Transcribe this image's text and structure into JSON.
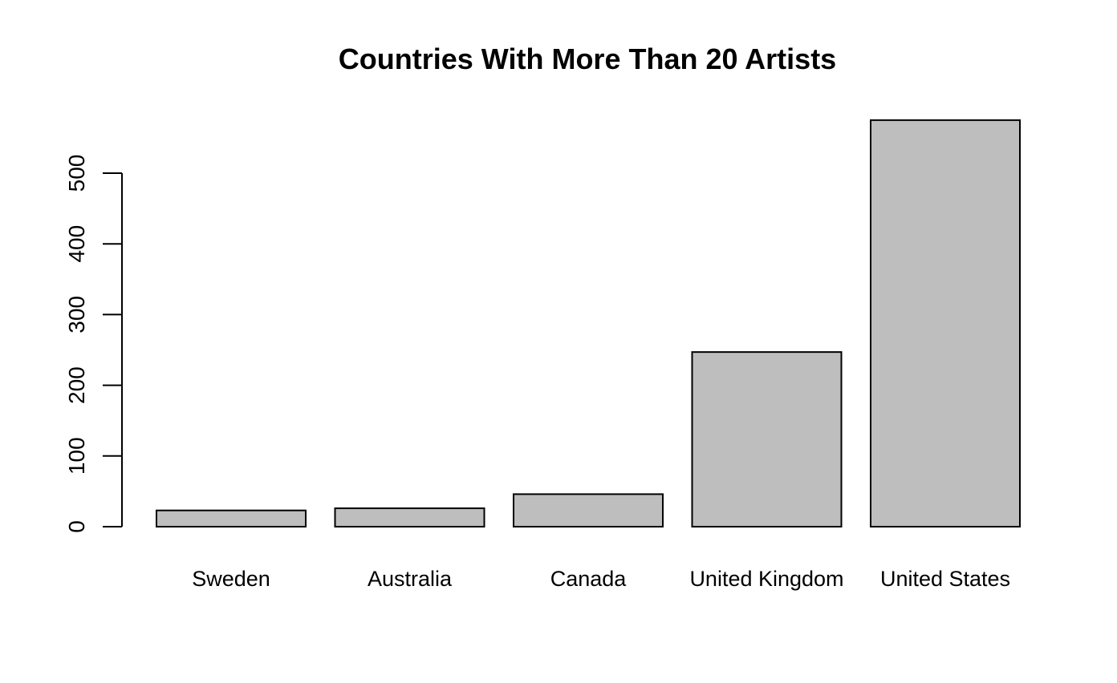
{
  "chart_data": {
    "type": "bar",
    "title": "Countries With More Than 20 Artists",
    "xlabel": "",
    "ylabel": "",
    "categories": [
      "Sweden",
      "Australia",
      "Canada",
      "United Kingdom",
      "United States"
    ],
    "values": [
      23,
      26,
      46,
      247,
      575
    ],
    "ylim": [
      0,
      575
    ],
    "yticks": [
      0,
      100,
      200,
      300,
      400,
      500
    ],
    "grid": false,
    "legend": "none",
    "colors": {
      "bar_fill": "#bebebe",
      "bar_stroke": "#000000",
      "axis": "#000000",
      "background": "#ffffff"
    }
  }
}
